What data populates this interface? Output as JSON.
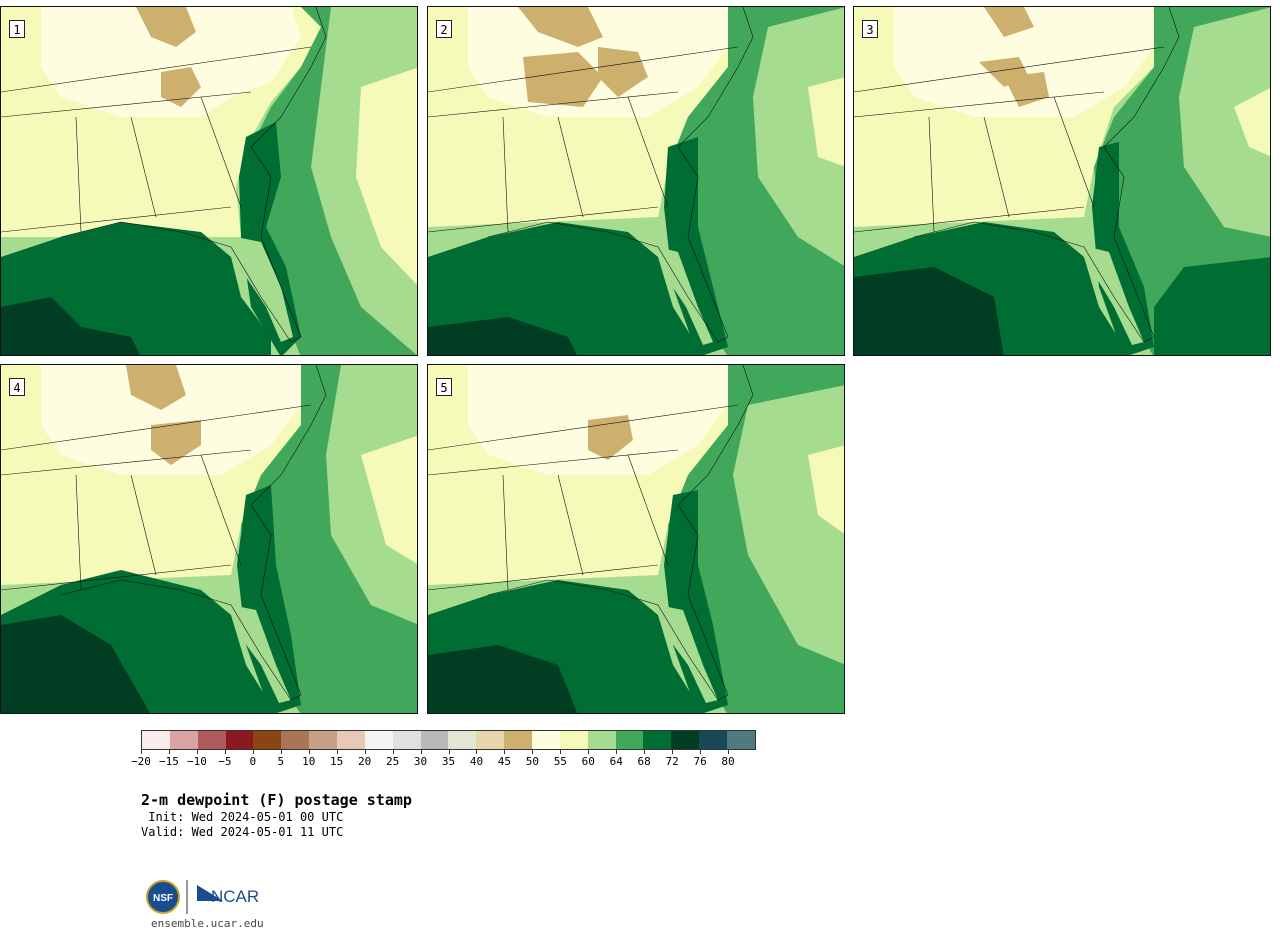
{
  "panels": [
    {
      "label": "1"
    },
    {
      "label": "2"
    },
    {
      "label": "3"
    },
    {
      "label": "4"
    },
    {
      "label": "5"
    }
  ],
  "colorbar": {
    "colors": [
      "#f7ecea",
      "#d9a2a4",
      "#b05a5e",
      "#8c1820",
      "#8a4512",
      "#a87654",
      "#c8a08a",
      "#e8c9b8",
      "#f4f4f4",
      "#e0e0e0",
      "#b9b9b9",
      "#e3e6d5",
      "#e6d6ac",
      "#cdb06e",
      "#fefde0",
      "#f6fab9",
      "#a6dc8f",
      "#41a85b",
      "#006d32",
      "#003d22",
      "#174a55",
      "#4f7b80"
    ],
    "tick_labels": [
      "−20",
      "−15",
      "−10",
      "−5",
      "0",
      "5",
      "10",
      "15",
      "20",
      "25",
      "30",
      "35",
      "40",
      "45",
      "50",
      "55",
      "60",
      "64",
      "68",
      "72",
      "76",
      "80"
    ]
  },
  "title": "2-m dewpoint (F) postage stamp",
  "init": " Init: Wed 2024-05-01 00 UTC",
  "valid": "Valid: Wed 2024-05-01 11 UTC",
  "logo": {
    "nsf_text": "NSF",
    "ncar_text": "NCAR"
  },
  "site": "ensemble.ucar.edu"
}
